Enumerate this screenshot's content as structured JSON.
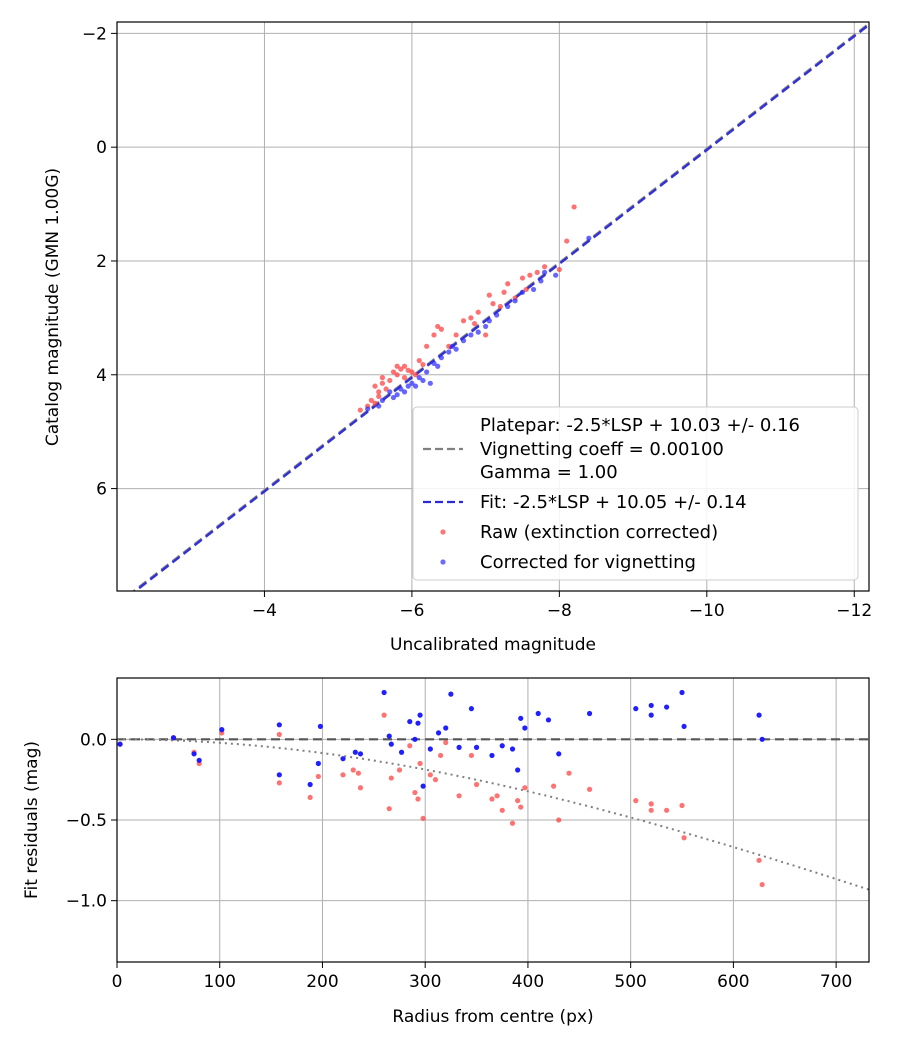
{
  "chart_data": [
    {
      "type": "scatter",
      "xlabel": "Uncalibrated magnitude",
      "ylabel": "Catalog magnitude (GMN 1.00G)",
      "xlim": [
        -2.0,
        -12.2
      ],
      "ylim": [
        7.8,
        -2.2
      ],
      "xticks": [
        -4,
        -6,
        -8,
        -10,
        -12
      ],
      "xtick_labels": [
        "−4",
        "−6",
        "−8",
        "−10",
        "−12"
      ],
      "yticks": [
        -2,
        0,
        2,
        4,
        6
      ],
      "ytick_labels": [
        "−2",
        "0",
        "2",
        "4",
        "6"
      ],
      "grid": true,
      "legend_position": "lower-right",
      "lines": [
        {
          "name": "platepar",
          "legend": [
            "Platepar: -2.5*LSP + 10.03 +/- 0.16",
            "Vignetting coeff = 0.00100",
            "Gamma = 1.00"
          ],
          "color": "#808080",
          "style": "dashed",
          "intercept": 10.03
        },
        {
          "name": "fit",
          "legend": [
            "Fit: -2.5*LSP + 10.05 +/- 0.14"
          ],
          "color": "#2a2ad8",
          "style": "dashed",
          "intercept": 10.05
        }
      ],
      "series": [
        {
          "name": "Raw (extinction corrected)",
          "color": "#ff3b3b",
          "points": [
            [
              -5.3,
              4.62
            ],
            [
              -5.4,
              4.55
            ],
            [
              -5.45,
              4.45
            ],
            [
              -5.5,
              4.5
            ],
            [
              -5.5,
              4.2
            ],
            [
              -5.55,
              4.3
            ],
            [
              -5.55,
              4.38
            ],
            [
              -5.6,
              4.15
            ],
            [
              -5.6,
              4.05
            ],
            [
              -5.65,
              4.25
            ],
            [
              -5.7,
              4.1
            ],
            [
              -5.75,
              3.95
            ],
            [
              -5.8,
              4.0
            ],
            [
              -5.8,
              3.85
            ],
            [
              -5.85,
              3.9
            ],
            [
              -5.9,
              4.05
            ],
            [
              -5.9,
              3.85
            ],
            [
              -5.95,
              3.92
            ],
            [
              -6.0,
              3.95
            ],
            [
              -6.05,
              4.0
            ],
            [
              -6.1,
              3.75
            ],
            [
              -6.15,
              3.82
            ],
            [
              -6.2,
              3.5
            ],
            [
              -6.3,
              3.3
            ],
            [
              -6.35,
              3.15
            ],
            [
              -6.4,
              3.2
            ],
            [
              -6.5,
              3.5
            ],
            [
              -6.6,
              3.3
            ],
            [
              -6.7,
              3.05
            ],
            [
              -6.8,
              3.0
            ],
            [
              -6.85,
              3.1
            ],
            [
              -6.9,
              2.9
            ],
            [
              -7.0,
              3.3
            ],
            [
              -7.05,
              2.6
            ],
            [
              -7.1,
              2.75
            ],
            [
              -7.2,
              2.8
            ],
            [
              -7.25,
              2.55
            ],
            [
              -7.3,
              2.4
            ],
            [
              -7.4,
              2.65
            ],
            [
              -7.5,
              2.3
            ],
            [
              -7.55,
              2.5
            ],
            [
              -7.6,
              2.25
            ],
            [
              -7.7,
              2.2
            ],
            [
              -7.8,
              2.1
            ],
            [
              -8.0,
              2.15
            ],
            [
              -8.1,
              1.65
            ],
            [
              -8.2,
              1.05
            ]
          ]
        },
        {
          "name": "Corrected for vignetting",
          "color": "#2b2bff",
          "points": [
            [
              -5.4,
              4.6
            ],
            [
              -5.55,
              4.55
            ],
            [
              -5.6,
              4.45
            ],
            [
              -5.7,
              4.3
            ],
            [
              -5.75,
              4.4
            ],
            [
              -5.8,
              4.35
            ],
            [
              -5.85,
              4.25
            ],
            [
              -5.9,
              4.3
            ],
            [
              -5.95,
              4.2
            ],
            [
              -6.0,
              4.15
            ],
            [
              -6.05,
              4.2
            ],
            [
              -6.1,
              4.05
            ],
            [
              -6.15,
              4.1
            ],
            [
              -6.2,
              3.95
            ],
            [
              -6.25,
              4.15
            ],
            [
              -6.3,
              3.8
            ],
            [
              -6.35,
              3.85
            ],
            [
              -6.4,
              3.7
            ],
            [
              -6.5,
              3.6
            ],
            [
              -6.55,
              3.5
            ],
            [
              -6.6,
              3.55
            ],
            [
              -6.7,
              3.4
            ],
            [
              -6.8,
              3.3
            ],
            [
              -6.9,
              3.25
            ],
            [
              -7.0,
              3.15
            ],
            [
              -7.05,
              3.05
            ],
            [
              -7.15,
              2.95
            ],
            [
              -7.3,
              2.8
            ],
            [
              -7.4,
              2.7
            ],
            [
              -7.5,
              2.55
            ],
            [
              -7.65,
              2.5
            ],
            [
              -7.75,
              2.35
            ],
            [
              -7.8,
              2.2
            ],
            [
              -7.95,
              2.25
            ],
            [
              -8.4,
              1.6
            ]
          ]
        }
      ]
    },
    {
      "type": "scatter",
      "xlabel": "Radius from centre (px)",
      "ylabel": "Fit residuals (mag)",
      "xlim": [
        0,
        732
      ],
      "ylim": [
        -1.38,
        0.38
      ],
      "xticks": [
        0,
        100,
        200,
        300,
        400,
        500,
        600,
        700
      ],
      "xtick_labels": [
        "0",
        "100",
        "200",
        "300",
        "400",
        "500",
        "600",
        "700"
      ],
      "yticks": [
        0.0,
        -0.5,
        -1.0
      ],
      "ytick_labels": [
        "0.0",
        "−0.5",
        "−1.0"
      ],
      "grid": true,
      "zero_line": {
        "value": 0.0,
        "color": "#555555",
        "style": "dashed"
      },
      "vignetting_curve": {
        "coefficient": 0.001,
        "color": "#808080",
        "style": "dotted"
      },
      "series": [
        {
          "name": "Raw (extinction corrected)",
          "color": "#ff3b3b",
          "points": [
            [
              3,
              -0.03
            ],
            [
              55,
              0.01
            ],
            [
              75,
              -0.08
            ],
            [
              80,
              -0.15
            ],
            [
              102,
              0.04
            ],
            [
              158,
              0.03
            ],
            [
              158,
              -0.27
            ],
            [
              188,
              -0.36
            ],
            [
              196,
              -0.23
            ],
            [
              220,
              -0.22
            ],
            [
              230,
              -0.19
            ],
            [
              235,
              -0.21
            ],
            [
              237,
              -0.3
            ],
            [
              260,
              0.15
            ],
            [
              265,
              -0.43
            ],
            [
              267,
              -0.24
            ],
            [
              275,
              -0.19
            ],
            [
              285,
              -0.04
            ],
            [
              290,
              -0.33
            ],
            [
              293,
              -0.37
            ],
            [
              295,
              -0.15
            ],
            [
              298,
              -0.49
            ],
            [
              305,
              -0.22
            ],
            [
              310,
              -0.25
            ],
            [
              315,
              -0.1
            ],
            [
              320,
              -0.02
            ],
            [
              333,
              -0.35
            ],
            [
              345,
              -0.1
            ],
            [
              350,
              -0.28
            ],
            [
              365,
              -0.37
            ],
            [
              370,
              -0.35
            ],
            [
              375,
              -0.44
            ],
            [
              385,
              -0.52
            ],
            [
              390,
              -0.38
            ],
            [
              393,
              -0.42
            ],
            [
              397,
              -0.3
            ],
            [
              425,
              -0.29
            ],
            [
              430,
              -0.5
            ],
            [
              440,
              -0.21
            ],
            [
              460,
              -0.31
            ],
            [
              505,
              -0.38
            ],
            [
              520,
              -0.4
            ],
            [
              520,
              -0.44
            ],
            [
              535,
              -0.44
            ],
            [
              550,
              -0.41
            ],
            [
              552,
              -0.61
            ],
            [
              625,
              -0.75
            ],
            [
              628,
              -0.9
            ]
          ]
        },
        {
          "name": "Corrected for vignetting",
          "color": "#1414ff",
          "points": [
            [
              3,
              -0.03
            ],
            [
              55,
              0.01
            ],
            [
              75,
              -0.09
            ],
            [
              80,
              -0.13
            ],
            [
              102,
              0.06
            ],
            [
              158,
              0.09
            ],
            [
              158,
              -0.22
            ],
            [
              188,
              -0.28
            ],
            [
              196,
              -0.15
            ],
            [
              198,
              0.08
            ],
            [
              220,
              -0.12
            ],
            [
              232,
              -0.08
            ],
            [
              237,
              -0.09
            ],
            [
              260,
              0.29
            ],
            [
              265,
              0.02
            ],
            [
              267,
              -0.03
            ],
            [
              277,
              -0.08
            ],
            [
              285,
              0.11
            ],
            [
              290,
              0.0
            ],
            [
              293,
              0.1
            ],
            [
              295,
              0.15
            ],
            [
              298,
              -0.29
            ],
            [
              305,
              -0.06
            ],
            [
              313,
              0.04
            ],
            [
              320,
              0.07
            ],
            [
              325,
              0.28
            ],
            [
              333,
              -0.05
            ],
            [
              345,
              0.19
            ],
            [
              350,
              -0.05
            ],
            [
              365,
              -0.1
            ],
            [
              375,
              -0.04
            ],
            [
              385,
              -0.06
            ],
            [
              390,
              -0.19
            ],
            [
              393,
              0.13
            ],
            [
              397,
              0.07
            ],
            [
              410,
              0.16
            ],
            [
              420,
              0.12
            ],
            [
              430,
              -0.09
            ],
            [
              460,
              0.16
            ],
            [
              505,
              0.19
            ],
            [
              520,
              0.21
            ],
            [
              520,
              0.15
            ],
            [
              535,
              0.2
            ],
            [
              550,
              0.29
            ],
            [
              552,
              0.08
            ],
            [
              625,
              0.15
            ],
            [
              628,
              0.0
            ]
          ]
        }
      ]
    }
  ]
}
